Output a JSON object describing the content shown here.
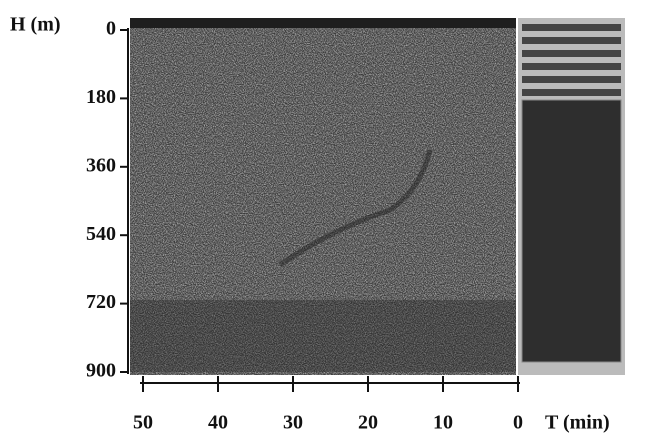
{
  "chart_data": {
    "type": "echogram",
    "y_label": "H (m)",
    "x_label": "T (min)",
    "ylim": [
      0,
      900
    ],
    "yticks": [
      0,
      180,
      360,
      540,
      720,
      900
    ],
    "xlim": [
      50,
      0
    ],
    "xticks": [
      50,
      40,
      30,
      20,
      10,
      0
    ]
  }
}
